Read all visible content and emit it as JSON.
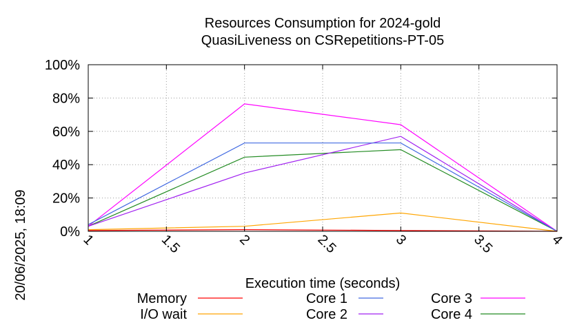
{
  "chart_data": {
    "type": "line",
    "title": "Resources Consumption for 2024-gold",
    "subtitle": "QuasiLiveness on CSRepetitions-PT-05",
    "xlabel": "Execution time (seconds)",
    "ylabel": "",
    "side_label": "20/06/2025, 18:09",
    "xlim": [
      1,
      4
    ],
    "ylim": [
      0,
      100
    ],
    "x_ticks": [
      "1",
      "1.5",
      "2",
      "2.5",
      "3",
      "3.5",
      "4"
    ],
    "y_ticks": [
      "0%",
      "20%",
      "40%",
      "60%",
      "80%",
      "100%"
    ],
    "grid": true,
    "legend_position": "bottom",
    "x": [
      1,
      2,
      3,
      4
    ],
    "series": [
      {
        "name": "Memory",
        "color": "#ff0000",
        "values": [
          0.5,
          1.0,
          0.5,
          0
        ]
      },
      {
        "name": "I/O wait",
        "color": "#ffa500",
        "values": [
          1,
          3,
          11,
          0
        ]
      },
      {
        "name": "Core 1",
        "color": "#4169e1",
        "values": [
          4,
          53,
          53,
          0
        ]
      },
      {
        "name": "Core 2",
        "color": "#a020f0",
        "values": [
          3,
          35,
          57,
          0
        ]
      },
      {
        "name": "Core 3",
        "color": "#ff00ff",
        "values": [
          3,
          76.5,
          64,
          0
        ]
      },
      {
        "name": "Core 4",
        "color": "#228b22",
        "values": [
          3,
          44.5,
          49,
          0
        ]
      }
    ]
  }
}
